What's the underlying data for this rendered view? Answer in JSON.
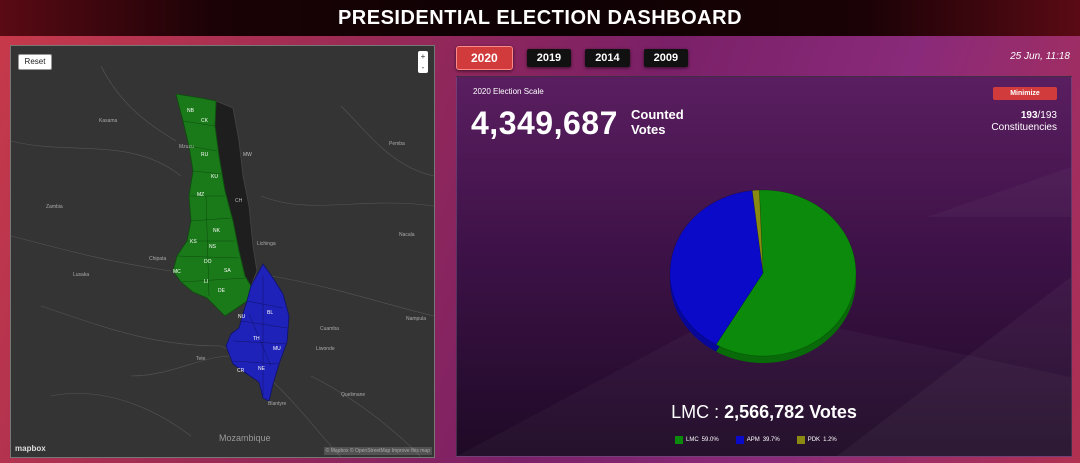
{
  "header": {
    "title": "PRESIDENTIAL ELECTION DASHBOARD"
  },
  "tabs": [
    {
      "label": "2020",
      "active": true
    },
    {
      "label": "2019",
      "active": false
    },
    {
      "label": "2014",
      "active": false
    },
    {
      "label": "2009",
      "active": false
    }
  ],
  "datetime": "25 Jun, 11:18",
  "map": {
    "reset_label": "Reset",
    "zoom_in": "+",
    "zoom_out": "-",
    "logo": "mapbox",
    "attribution": "© Mapbox © OpenStreetMap  Improve this map",
    "country_label": "Mozambique",
    "region_labels": [
      "CK",
      "NB",
      "RU",
      "MZ",
      "KU",
      "NK",
      "NS",
      "DO",
      "KS",
      "MC",
      "LI",
      "DE",
      "SA",
      "BL",
      "NU",
      "TH",
      "CR",
      "NE",
      "MW",
      "CH",
      "MU"
    ],
    "place_labels": [
      "Kasama",
      "Chipata",
      "Lusaka",
      "Nampula",
      "Tete",
      "Lichinga",
      "Mzuzu",
      "Zambia",
      "Cuamba",
      "Quelimane",
      "Liwonde",
      "Nacala",
      "Pemba",
      "Blantyre"
    ],
    "colors": {
      "lmc_region": "#1a7a1a",
      "apm_region": "#1f22b8",
      "other_region": "#1e1e1e"
    }
  },
  "card": {
    "scale_label": "2020 Election Scale",
    "total_votes": "4,349,687",
    "counted_label": "Counted Votes",
    "minimize_label": "Minimize",
    "constituencies_count": "193",
    "constituencies_total": "/193",
    "constituencies_label": "Constituencies",
    "leader_party": "LMC",
    "leader_sep": " : ",
    "leader_votes": "2,566,782 Votes"
  },
  "chart_data": {
    "type": "pie",
    "title": "",
    "categories": [
      "LMC",
      "APM",
      "PDK"
    ],
    "values": [
      59.0,
      39.7,
      1.2
    ],
    "value_labels": [
      "59.0%",
      "39.7%",
      "1.2%"
    ],
    "colors": [
      "#0b8a0b",
      "#0a0ac8",
      "#8a8a12"
    ],
    "side_colors": [
      "#086a08",
      "#07079a",
      "#6a6a0c"
    ],
    "legend_position": "bottom"
  }
}
